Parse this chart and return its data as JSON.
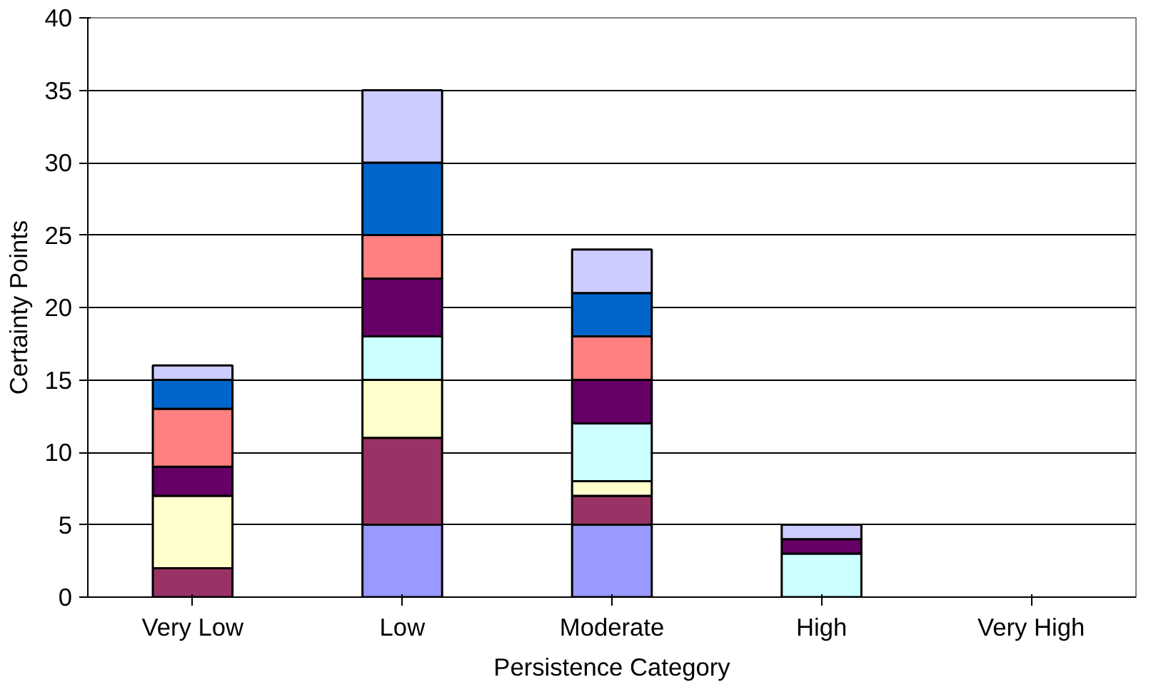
{
  "chart_data": {
    "type": "bar",
    "stacked": true,
    "xlabel": "Persistence Category",
    "ylabel": "Certainty Points",
    "categories": [
      "Very Low",
      "Low",
      "Moderate",
      "High",
      "Very High"
    ],
    "ylim": [
      0,
      40
    ],
    "yticks": [
      0,
      5,
      10,
      15,
      20,
      25,
      30,
      35,
      40
    ],
    "grid": "y",
    "series": [
      {
        "color": "#9999ff",
        "values": [
          0,
          5,
          5,
          0,
          0
        ]
      },
      {
        "color": "#993366",
        "values": [
          2,
          6,
          2,
          0,
          0
        ]
      },
      {
        "color": "#ffffcc",
        "values": [
          5,
          4,
          1,
          0,
          0
        ]
      },
      {
        "color": "#ccffff",
        "values": [
          0,
          3,
          4,
          3,
          0
        ]
      },
      {
        "color": "#660066",
        "values": [
          2,
          4,
          3,
          1,
          0
        ]
      },
      {
        "color": "#ff8080",
        "values": [
          4,
          3,
          3,
          0,
          0
        ]
      },
      {
        "color": "#0066cc",
        "values": [
          2,
          5,
          3,
          0,
          0
        ]
      },
      {
        "color": "#ccccff",
        "values": [
          1,
          5,
          3,
          1,
          0
        ]
      }
    ]
  }
}
